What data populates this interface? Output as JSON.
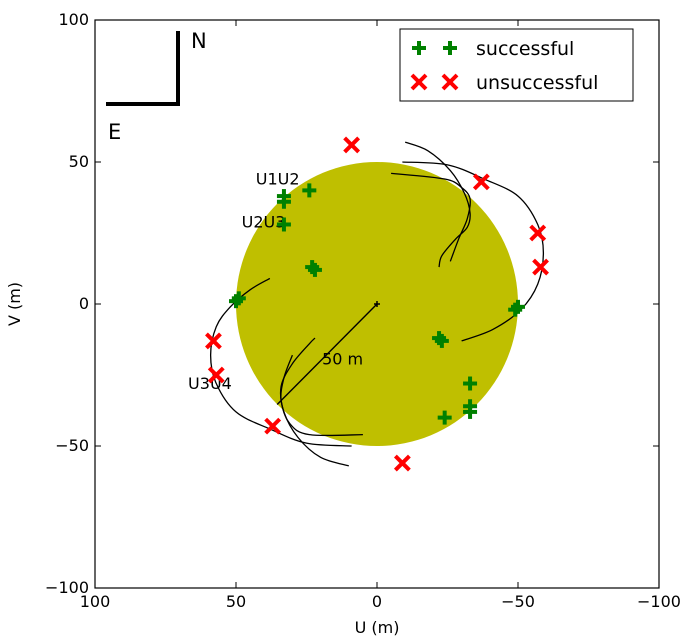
{
  "chart_data": {
    "type": "scatter",
    "xlabel": "U (m)",
    "ylabel": "V (m)",
    "xlim": [
      100,
      -100
    ],
    "ylim": [
      -100,
      100
    ],
    "x_reversed": true,
    "x_ticks": [
      {
        "value": 100,
        "label": "100"
      },
      {
        "value": 50,
        "label": "50"
      },
      {
        "value": 0,
        "label": "0"
      },
      {
        "value": -50,
        "label": "−50"
      },
      {
        "value": -100,
        "label": "−100"
      }
    ],
    "y_ticks": [
      {
        "value": 100,
        "label": "100"
      },
      {
        "value": 50,
        "label": "50"
      },
      {
        "value": 0,
        "label": "0"
      },
      {
        "value": -50,
        "label": "−50"
      },
      {
        "value": -100,
        "label": "−100"
      }
    ],
    "grid": false,
    "legend_position": "top-right",
    "colors": {
      "disk": "#bfbf00",
      "successful": "#008000",
      "unsuccessful": "#ff0000",
      "axes": "#000000"
    },
    "disk": {
      "center": [
        0,
        0
      ],
      "radius": 50
    },
    "center_point": [
      0,
      0
    ],
    "radius_annotation": {
      "text": "50 m",
      "from": [
        0,
        0
      ],
      "to": [
        35.4,
        -35.4
      ]
    },
    "compass": {
      "north": "N",
      "east": "E"
    },
    "baseline_labels": [
      {
        "text": "U1U2",
        "at": [
          43,
          42
        ]
      },
      {
        "text": "U2U3",
        "at": [
          48,
          27
        ]
      },
      {
        "text": "U3U4",
        "at": [
          67,
          -30
        ]
      }
    ],
    "tracks": [
      [
        [
          -10,
          57
        ],
        [
          -18,
          54
        ],
        [
          -26,
          47
        ],
        [
          -31,
          39
        ],
        [
          -33,
          32
        ],
        [
          -32,
          27
        ],
        [
          -28,
          23
        ],
        [
          -23,
          17
        ],
        [
          -22,
          13
        ]
      ],
      [
        [
          -5,
          46
        ],
        [
          -24,
          44
        ],
        [
          -30,
          41
        ],
        [
          -33,
          37
        ],
        [
          -32,
          30
        ],
        [
          -29,
          23
        ],
        [
          -26,
          15
        ]
      ],
      [
        [
          -9,
          50
        ],
        [
          -25,
          49
        ],
        [
          -38,
          44
        ],
        [
          -50,
          38
        ],
        [
          -57,
          28
        ],
        [
          -59,
          18
        ],
        [
          -57,
          7
        ],
        [
          -51,
          -2
        ],
        [
          -41,
          -9
        ],
        [
          -30,
          -13
        ]
      ],
      [
        [
          10,
          -57
        ],
        [
          20,
          -54
        ],
        [
          28,
          -47
        ],
        [
          33,
          -38
        ],
        [
          34,
          -29
        ],
        [
          30,
          -21
        ],
        [
          24,
          -14
        ],
        [
          22,
          -12
        ]
      ],
      [
        [
          5,
          -46
        ],
        [
          24,
          -46
        ],
        [
          31,
          -42
        ],
        [
          34,
          -34
        ],
        [
          33,
          -26
        ],
        [
          30,
          -18
        ]
      ],
      [
        [
          9,
          -50
        ],
        [
          25,
          -49
        ],
        [
          38,
          -44
        ],
        [
          50,
          -38
        ],
        [
          57,
          -28
        ],
        [
          59,
          -18
        ],
        [
          57,
          -8
        ],
        [
          52,
          -1
        ],
        [
          45,
          5
        ],
        [
          38,
          9
        ]
      ]
    ],
    "series": [
      {
        "name": "successful",
        "marker": "plus",
        "color": "#008000",
        "points": [
          [
            33,
            38
          ],
          [
            33,
            36
          ],
          [
            24,
            40
          ],
          [
            33,
            28
          ],
          [
            23,
            13
          ],
          [
            22,
            12
          ],
          [
            -33,
            -38
          ],
          [
            -33,
            -36
          ],
          [
            -24,
            -40
          ],
          [
            -33,
            -28
          ],
          [
            -23,
            -13
          ],
          [
            -22,
            -12
          ],
          [
            50,
            1
          ],
          [
            49,
            2
          ],
          [
            -50,
            -1
          ],
          [
            -49,
            -2
          ]
        ]
      },
      {
        "name": "unsuccessful",
        "marker": "cross",
        "color": "#ff0000",
        "points": [
          [
            9,
            56
          ],
          [
            -37,
            43
          ],
          [
            -57,
            25
          ],
          [
            -58,
            13
          ],
          [
            -9,
            -56
          ],
          [
            37,
            -43
          ],
          [
            57,
            -25
          ],
          [
            58,
            -13
          ]
        ]
      }
    ]
  }
}
